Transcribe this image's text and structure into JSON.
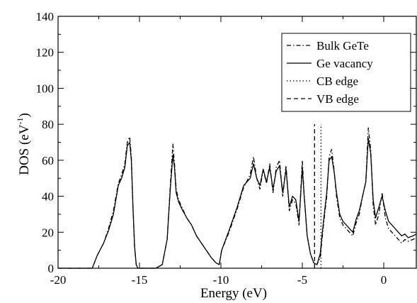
{
  "chart_data": {
    "type": "line",
    "title": "",
    "xlabel": "Energy (eV)",
    "ylabel_main": "DOS (eV",
    "ylabel_sup": "-1",
    "ylabel_close": ")",
    "xlim": [
      -20,
      2
    ],
    "ylim": [
      0,
      140
    ],
    "xticks": [
      -20,
      -15,
      -10,
      -5,
      0
    ],
    "yticks": [
      0,
      20,
      40,
      60,
      80,
      100,
      120,
      140
    ],
    "legend_position": "top-right",
    "series": [
      {
        "name": "Bulk GeTe",
        "style": "dashdot",
        "x": [
          -20,
          -17.9,
          -17.6,
          -17.2,
          -16.9,
          -16.6,
          -16.3,
          -16.1,
          -15.9,
          -15.75,
          -15.6,
          -15.5,
          -15.4,
          -15.3,
          -15.2,
          -15.1,
          -14.0,
          -13.6,
          -13.3,
          -13.1,
          -12.95,
          -12.85,
          -12.75,
          -12.6,
          -12.4,
          -12.1,
          -11.8,
          -11.5,
          -11.2,
          -10.9,
          -10.6,
          -10.3,
          -10.1,
          -9.95,
          -9.5,
          -9.0,
          -8.6,
          -8.2,
          -8.0,
          -7.8,
          -7.6,
          -7.4,
          -7.2,
          -7.0,
          -6.8,
          -6.6,
          -6.4,
          -6.2,
          -6.0,
          -5.8,
          -5.6,
          -5.4,
          -5.2,
          -5.0,
          -4.9,
          -4.7,
          -4.5,
          -4.3,
          -4.1,
          -3.9,
          -3.7,
          -3.5,
          -3.35,
          -3.2,
          -3.05,
          -2.9,
          -2.7,
          -2.5,
          -2.3,
          -2.1,
          -1.9,
          -1.7,
          -1.5,
          -1.3,
          -1.1,
          -0.95,
          -0.8,
          -0.65,
          -0.5,
          -0.3,
          -0.1,
          0.1,
          0.3,
          0.5,
          0.7,
          0.9,
          1.1,
          1.3,
          1.5,
          1.8,
          2.0
        ],
        "y": [
          0,
          0,
          7,
          14,
          22,
          32,
          47,
          52,
          58,
          70,
          73,
          62,
          35,
          12,
          2,
          0,
          0,
          2,
          16,
          47,
          69,
          58,
          44,
          38,
          34,
          28,
          24,
          18,
          14,
          10,
          6,
          3,
          2,
          10,
          20,
          33,
          45,
          52,
          62,
          50,
          44,
          55,
          47,
          58,
          42,
          56,
          60,
          40,
          57,
          32,
          38,
          36,
          24,
          60,
          43,
          18,
          8,
          3,
          2,
          6,
          24,
          40,
          62,
          66,
          55,
          40,
          28,
          24,
          22,
          20,
          18,
          25,
          30,
          40,
          48,
          78,
          66,
          35,
          24,
          30,
          42,
          28,
          22,
          20,
          18,
          16,
          14,
          16,
          15,
          16,
          17
        ]
      },
      {
        "name": "Ge vacancy",
        "style": "solid",
        "x": [
          -20,
          -17.9,
          -17.6,
          -17.2,
          -16.9,
          -16.6,
          -16.3,
          -16.1,
          -15.9,
          -15.75,
          -15.6,
          -15.5,
          -15.4,
          -15.3,
          -15.2,
          -15.1,
          -14.0,
          -13.6,
          -13.3,
          -13.1,
          -12.95,
          -12.85,
          -12.75,
          -12.6,
          -12.4,
          -12.1,
          -11.8,
          -11.5,
          -11.2,
          -10.9,
          -10.6,
          -10.3,
          -10.1,
          -9.95,
          -9.5,
          -9.0,
          -8.6,
          -8.2,
          -8.0,
          -7.8,
          -7.6,
          -7.4,
          -7.2,
          -7.0,
          -6.8,
          -6.6,
          -6.4,
          -6.2,
          -6.0,
          -5.8,
          -5.6,
          -5.4,
          -5.2,
          -5.0,
          -4.9,
          -4.7,
          -4.5,
          -4.3,
          -4.1,
          -3.9,
          -3.7,
          -3.5,
          -3.35,
          -3.2,
          -3.05,
          -2.9,
          -2.7,
          -2.5,
          -2.3,
          -2.1,
          -1.9,
          -1.7,
          -1.5,
          -1.3,
          -1.1,
          -0.95,
          -0.8,
          -0.65,
          -0.5,
          -0.3,
          -0.1,
          0.1,
          0.3,
          0.5,
          0.7,
          0.9,
          1.1,
          1.3,
          1.5,
          1.8,
          2.0
        ],
        "y": [
          0,
          0,
          7,
          14,
          21,
          30,
          46,
          50,
          56,
          68,
          70,
          60,
          34,
          12,
          2,
          0,
          0,
          2,
          16,
          45,
          63,
          56,
          42,
          37,
          33,
          28,
          24,
          18,
          14,
          10,
          6,
          3,
          2,
          10,
          21,
          34,
          46,
          50,
          58,
          50,
          46,
          55,
          48,
          56,
          44,
          54,
          57,
          42,
          55,
          34,
          40,
          38,
          26,
          56,
          42,
          18,
          8,
          3,
          2,
          8,
          26,
          42,
          60,
          62,
          54,
          42,
          30,
          26,
          24,
          22,
          20,
          27,
          32,
          40,
          48,
          72,
          64,
          38,
          28,
          34,
          40,
          32,
          26,
          24,
          22,
          20,
          18,
          19,
          17,
          18,
          19
        ]
      },
      {
        "name": "CB edge",
        "style": "dotted",
        "x": [
          -3.85,
          -3.85
        ],
        "y": [
          0,
          80
        ]
      },
      {
        "name": "VB edge",
        "style": "dashed",
        "x": [
          -4.25,
          -4.25
        ],
        "y": [
          0,
          80
        ]
      }
    ]
  }
}
